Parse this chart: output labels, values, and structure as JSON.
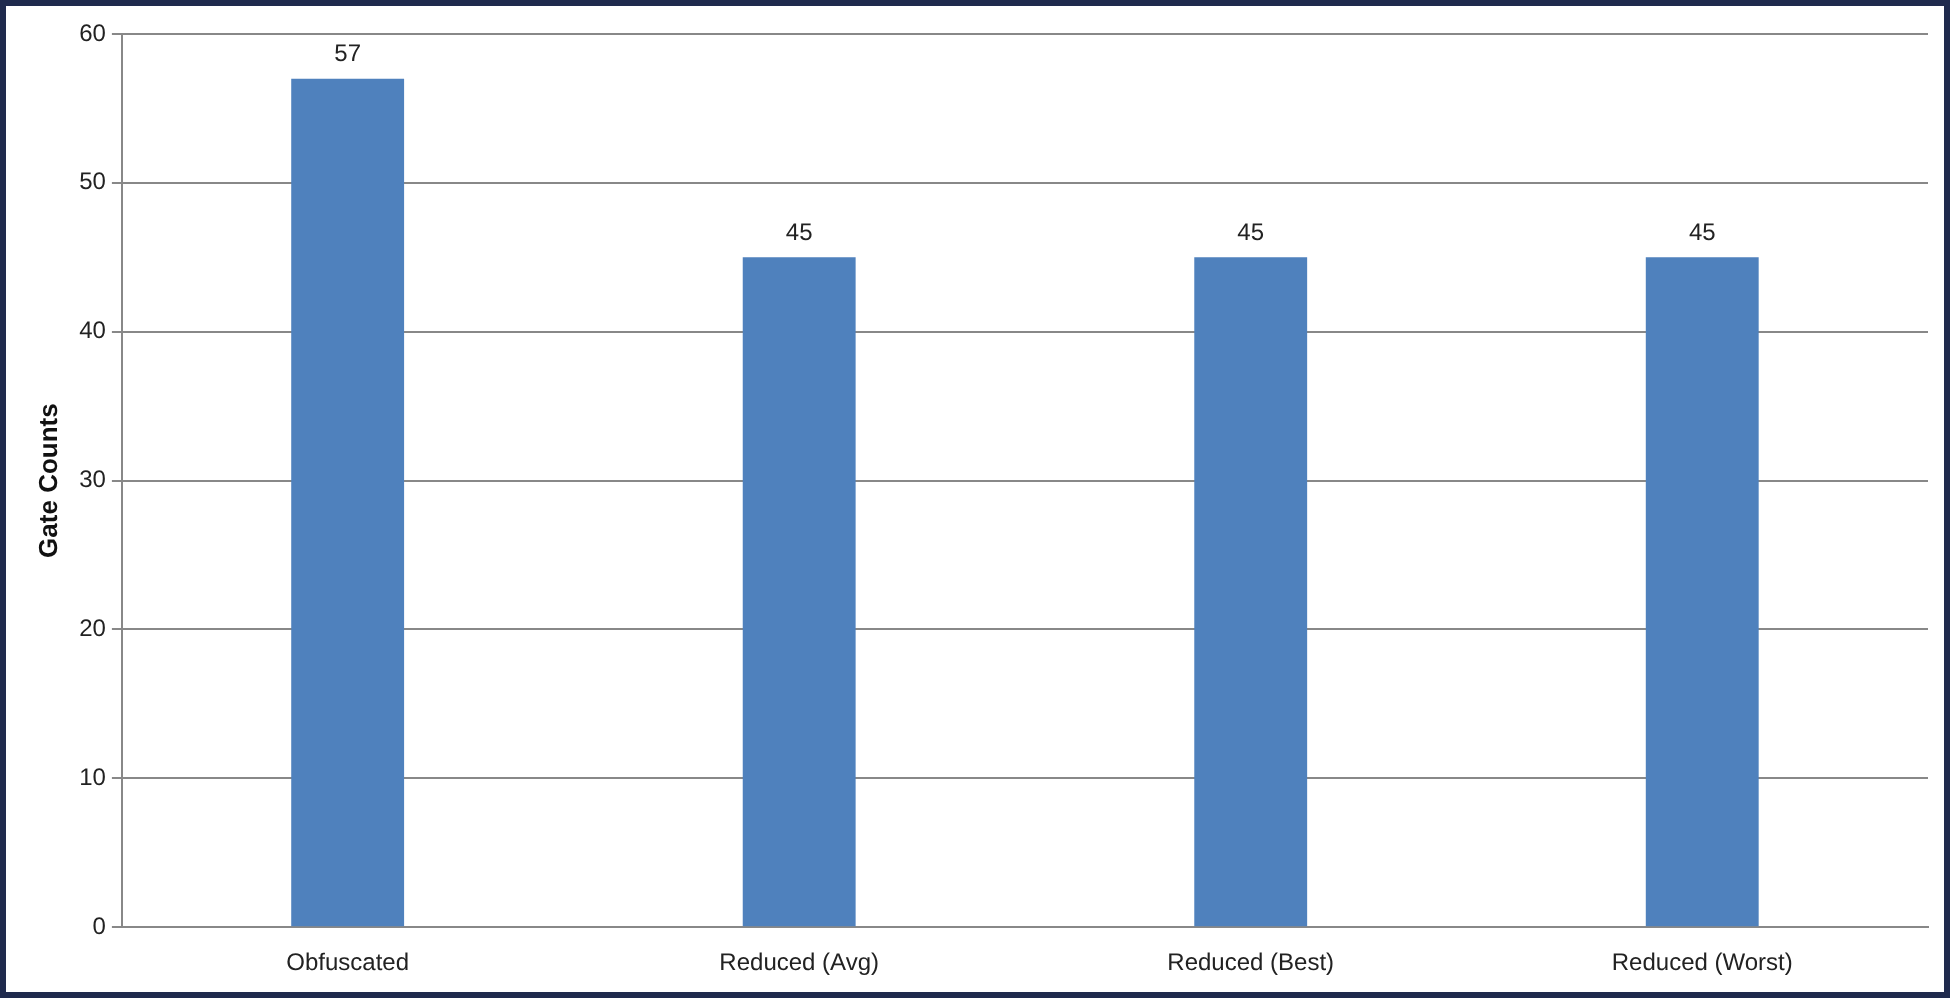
{
  "chart_data": {
    "type": "bar",
    "ylabel": "Gate Counts",
    "categories": [
      "Obfuscated",
      "Reduced (Avg)",
      "Reduced (Best)",
      "Reduced (Worst)"
    ],
    "values": [
      57,
      45,
      45,
      45
    ],
    "color": "#4f81bd",
    "ylim": [
      0,
      60
    ],
    "yticks": [
      0,
      10,
      20,
      30,
      40,
      50,
      60
    ],
    "grid": "y",
    "data_labels": true
  }
}
